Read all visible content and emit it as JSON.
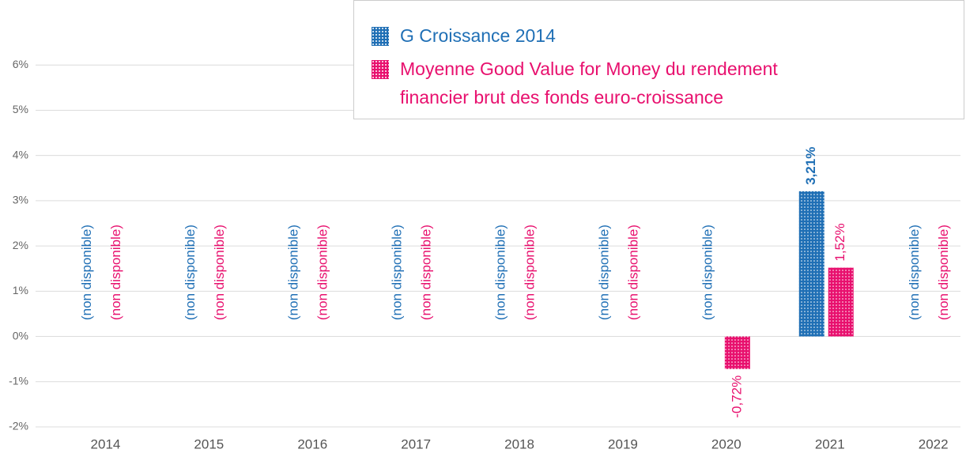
{
  "chart_data": {
    "type": "bar",
    "categories": [
      "2014",
      "2015",
      "2016",
      "2017",
      "2018",
      "2019",
      "2020",
      "2021",
      "2022"
    ],
    "series": [
      {
        "name": "G Croissance 2014",
        "color": "#1f6fb5",
        "values": [
          null,
          null,
          null,
          null,
          null,
          null,
          null,
          3.21,
          null
        ],
        "value_labels": [
          "(non disponible)",
          "(non disponible)",
          "(non disponible)",
          "(non disponible)",
          "(non disponible)",
          "(non disponible)",
          "(non disponible)",
          "3,21%",
          "(non disponible)"
        ]
      },
      {
        "name": "Moyenne Good Value for Money du rendement financier brut des fonds euro-croissance",
        "color": "#e8106e",
        "values": [
          null,
          null,
          null,
          null,
          null,
          null,
          -0.72,
          1.52,
          null
        ],
        "value_labels": [
          "(non disponible)",
          "(non disponible)",
          "(non disponible)",
          "(non disponible)",
          "(non disponible)",
          "(non disponible)",
          "-0,72%",
          "1,52%",
          "(non disponible)"
        ]
      }
    ],
    "ylim": [
      -2,
      7
    ],
    "yticks": [
      {
        "value": -2,
        "label": "-2%"
      },
      {
        "value": -1,
        "label": "-1%"
      },
      {
        "value": 0,
        "label": "0%"
      },
      {
        "value": 1,
        "label": "1%"
      },
      {
        "value": 2,
        "label": "2%"
      },
      {
        "value": 3,
        "label": "3%"
      },
      {
        "value": 4,
        "label": "4%"
      },
      {
        "value": 5,
        "label": "5%"
      },
      {
        "value": 6,
        "label": "6%"
      }
    ],
    "grid": true,
    "legend": "top-right"
  }
}
